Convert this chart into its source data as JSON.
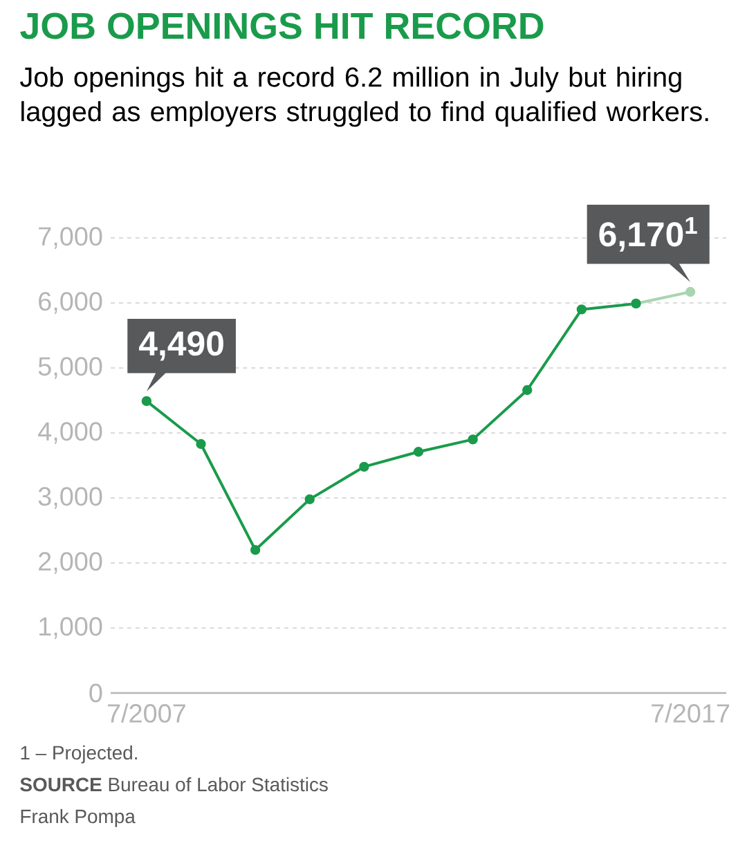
{
  "chart_data": {
    "type": "line",
    "title": "JOB OPENINGS HIT RECORD",
    "subtitle": "Job openings hit a record 6.2 million in July but hiring lagged as employers struggled to find qualified workers.",
    "categories": [
      "7/2007",
      null,
      null,
      null,
      null,
      null,
      null,
      null,
      null,
      null,
      "7/2017"
    ],
    "series": [
      {
        "color": "#1a9b4b",
        "values": [
          4490,
          3830,
          2200,
          2980,
          3480,
          3710,
          3900,
          4660,
          5900,
          5990,
          null
        ],
        "value_labels": [
          "4,490",
          null,
          null,
          null,
          null,
          null,
          null,
          null,
          null,
          null,
          null
        ]
      },
      {
        "color": "#a8d5b0",
        "values": [
          null,
          null,
          null,
          null,
          null,
          null,
          null,
          null,
          null,
          5990,
          6170
        ],
        "value_labels": [
          null,
          null,
          null,
          null,
          null,
          null,
          null,
          null,
          null,
          null,
          "6,170$^{1}$"
        ]
      }
    ],
    "ylim": [
      0,
      7000
    ],
    "yticks": [
      0,
      {
        "value": 1000,
        "label": "1,000"
      },
      {
        "value": 2000,
        "label": "2,000"
      },
      {
        "value": 3000,
        "label": "3,000"
      },
      {
        "value": 4000,
        "label": "4,000"
      },
      {
        "value": 5000,
        "label": "5,000"
      },
      {
        "value": 6000,
        "label": "6,000"
      },
      {
        "value": 7000,
        "label": "7,000"
      }
    ],
    "grid": "y",
    "marker": "circle",
    "annotations": [
      "1 – Projected.",
      "**SOURCE** Bureau of Labor Statistics",
      "Frank Pompa"
    ]
  }
}
